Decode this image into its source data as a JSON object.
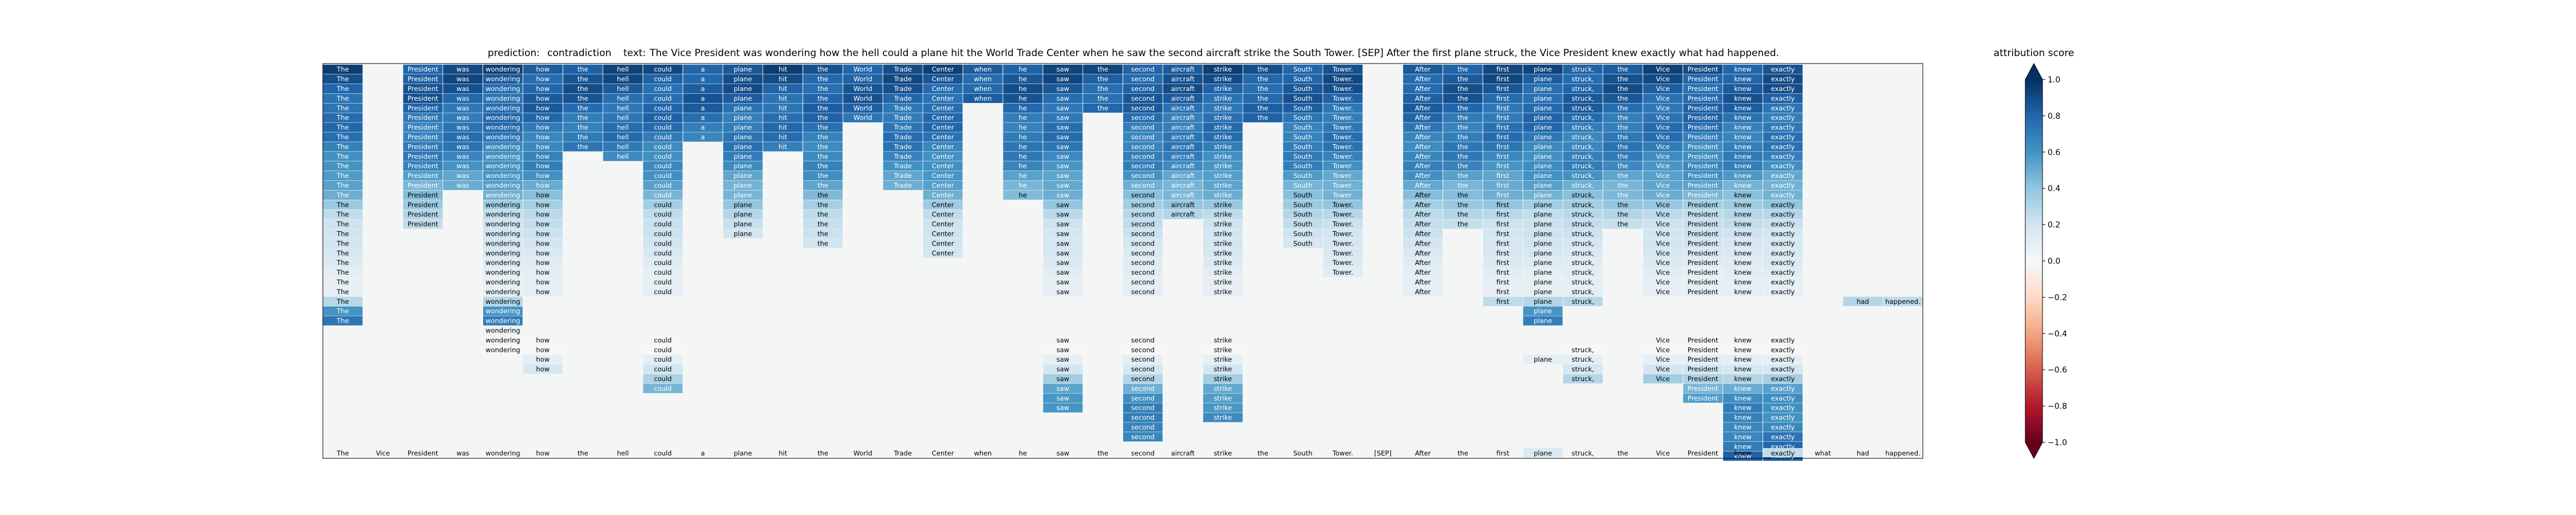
{
  "chart_data": {
    "type": "heatmap",
    "title": {
      "prediction_label": "prediction:",
      "prediction_value": "contradiction",
      "text_label": "text:",
      "text_value": "The Vice President was wondering how the hell could a plane hit the World Trade Center when he saw the second aircraft strike the South Tower. [SEP] After the first plane struck, the Vice President knew exactly what had happened."
    },
    "colorbar": {
      "label": "attribution score",
      "range": [
        -1.0,
        1.0
      ],
      "tick_labels": [
        "1.0",
        "0.8",
        "0.6",
        "0.4",
        "0.2",
        "0.0",
        "−0.2",
        "−0.4",
        "−0.6",
        "−0.8",
        "−1.0"
      ],
      "colormap": "RdBu",
      "extend": "both"
    },
    "tokens": [
      "The",
      "Vice",
      "President",
      "was",
      "wondering",
      "how",
      "the",
      "hell",
      "could",
      "a",
      "plane",
      "hit",
      "the",
      "World",
      "Trade",
      "Center",
      "when",
      "he",
      "saw",
      "the",
      "second",
      "aircraft",
      "strike",
      "the",
      "South",
      "Tower.",
      "[SEP]",
      "After",
      "the",
      "first",
      "plane",
      "struck,",
      "the",
      "Vice",
      "President",
      "knew",
      "exactly",
      "what",
      "had",
      "happened."
    ],
    "column_depths": [
      27,
      0,
      17,
      13,
      30,
      32,
      9,
      10,
      34,
      8,
      18,
      9,
      19,
      6,
      13,
      20,
      4,
      14,
      36,
      5,
      39,
      16,
      37,
      6,
      19,
      22,
      0,
      30,
      17,
      28,
      31,
      33,
      17,
      33,
      35,
      41,
      41,
      24,
      25,
      25
    ],
    "column_gaps": {
      "1": [],
      "4": [
        34
      ],
      "5": [
        24,
        25,
        26,
        27
      ],
      "8": [
        24,
        25,
        26,
        27
      ],
      "18": [
        24,
        25,
        26,
        27
      ],
      "20": [
        24,
        25,
        26,
        27
      ],
      "22": [
        24,
        25,
        26,
        27
      ],
      "27": [
        24,
        25,
        26,
        27,
        28,
        29,
        30
      ],
      "29": [
        25,
        26,
        27,
        28,
        29,
        30
      ],
      "30": [
        27,
        28,
        29
      ],
      "31": [
        25,
        26,
        27,
        28
      ],
      "33": [
        24,
        25,
        26,
        27
      ],
      "34": [
        24,
        25,
        26,
        27
      ],
      "35": [
        24,
        25,
        26,
        27
      ],
      "36": [
        24,
        25,
        26,
        27
      ],
      "37": [
        0,
        1,
        2,
        3,
        4,
        5,
        6,
        7,
        8,
        9,
        10,
        11,
        12,
        13,
        14,
        15,
        16,
        17,
        18,
        19,
        20,
        21,
        22,
        23
      ],
      "38": [
        0,
        1,
        2,
        3,
        4,
        5,
        6,
        7,
        8,
        9,
        10,
        11,
        12,
        13,
        14,
        15,
        16,
        17,
        18,
        19,
        20,
        21,
        22,
        23
      ],
      "39": [
        0,
        1,
        2,
        3,
        4,
        5,
        6,
        7,
        8,
        9,
        10,
        11,
        12,
        13,
        14,
        15,
        16,
        17,
        18,
        19,
        20,
        21,
        22,
        23
      ]
    },
    "column_start": {
      "37": 24,
      "38": 24,
      "39": 24
    },
    "row_attribution_profile": [
      0.95,
      0.92,
      0.9,
      0.88,
      0.85,
      0.82,
      0.8,
      0.78,
      0.75,
      0.72,
      0.7,
      0.62,
      0.55,
      0.5,
      0.4,
      0.3,
      0.25,
      0.22,
      0.2,
      0.18,
      0.15,
      0.12,
      0.1,
      0.1,
      0.3,
      0.6,
      0.75,
      0.05,
      0.02,
      0.0,
      0.1,
      0.2,
      0.35,
      0.55,
      0.65,
      0.7,
      0.72,
      0.75,
      0.78,
      0.8,
      0.85
    ],
    "bottom_highlight": {
      "token_indices": [
        30,
        36
      ],
      "values": [
        0.15,
        0.25
      ]
    }
  }
}
